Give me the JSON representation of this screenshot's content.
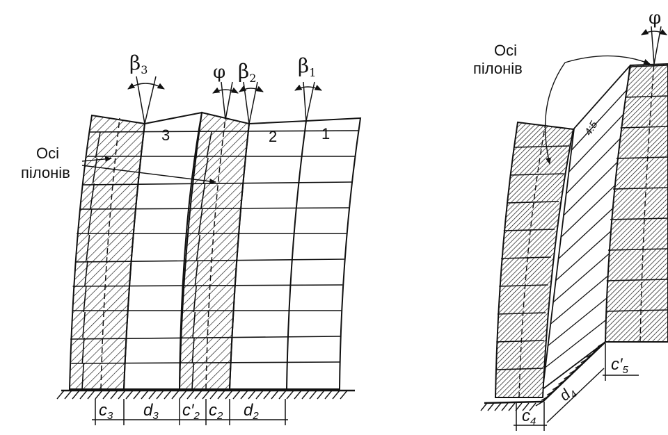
{
  "left": {
    "axes_label_line1": "Осі",
    "axes_label_line2": "пілонів",
    "angle_beta3": "β",
    "angle_beta3_sub": "3",
    "angle_phi": "φ",
    "angle_beta2": "β",
    "angle_beta2_sub": "2",
    "angle_beta1": "β",
    "angle_beta1_sub": "1",
    "wall_num_3": "3",
    "wall_num_2": "2",
    "wall_num_1": "1",
    "dim_c3": "c",
    "dim_c3_sub": "3",
    "dim_d3": "d",
    "dim_d3_sub": "3",
    "dim_c2p": "c′",
    "dim_c2p_sub": "2",
    "dim_c2": "c",
    "dim_c2_sub": "2",
    "dim_d2": "d",
    "dim_d2_sub": "2"
  },
  "right": {
    "axes_label_line1": "Осі",
    "axes_label_line2": "пілонів",
    "angle_phi": "φ",
    "slope_label": "4:5",
    "dim_c4": "c",
    "dim_c4_sub": "4",
    "dim_d4": "d",
    "dim_d4_sub": "4",
    "dim_c5": "c′",
    "dim_c5_sub": "5"
  }
}
